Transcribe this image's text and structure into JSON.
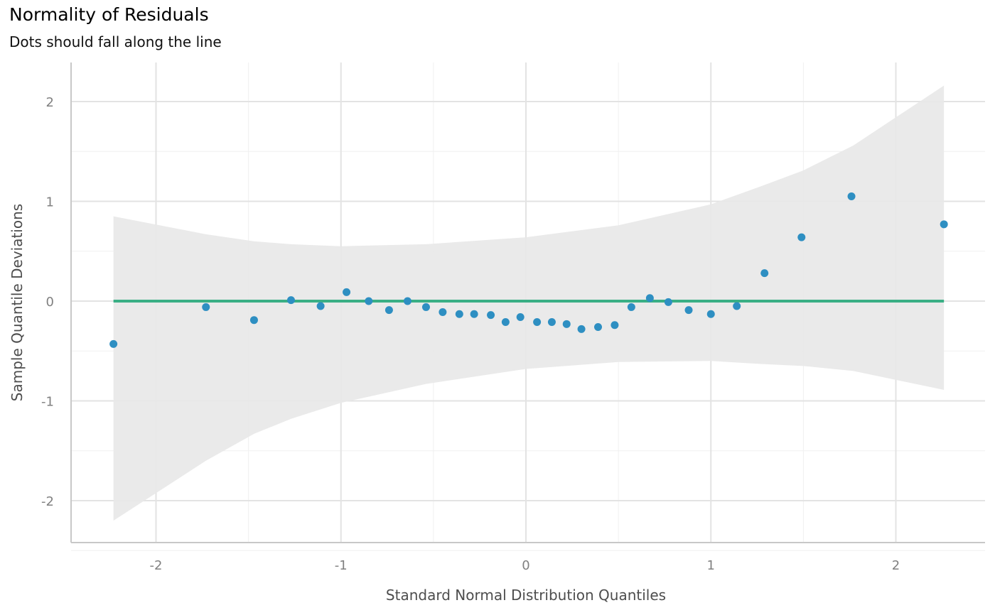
{
  "chart_data": {
    "type": "scatter",
    "title": "Normality of Residuals",
    "subtitle": "Dots should fall along the line",
    "xlabel": "Standard Normal Distribution Quantiles",
    "ylabel": "Sample Quantile Deviations",
    "xlim": [
      -2.46,
      2.48
    ],
    "ylim": [
      -2.43,
      2.38
    ],
    "xticks": [
      -2,
      -1,
      0,
      1,
      2
    ],
    "yticks": [
      -2,
      -1,
      0,
      1,
      2
    ],
    "grid": true,
    "colors": {
      "points": "#2e8fc2",
      "line": "#3aaf85",
      "band": "#e8e8e8"
    },
    "reference_line": {
      "y": 0,
      "x_range": [
        -2.23,
        2.26
      ]
    },
    "points": {
      "x": [
        -2.23,
        -1.73,
        -1.47,
        -1.27,
        -1.11,
        -0.97,
        -0.85,
        -0.74,
        -0.64,
        -0.54,
        -0.45,
        -0.36,
        -0.28,
        -0.19,
        -0.11,
        -0.03,
        0.06,
        0.14,
        0.22,
        0.3,
        0.39,
        0.48,
        0.57,
        0.67,
        0.77,
        0.88,
        1.0,
        1.14,
        1.29,
        1.49,
        1.76,
        2.26
      ],
      "y": [
        -0.43,
        -0.06,
        -0.19,
        0.01,
        -0.05,
        0.09,
        0.0,
        -0.09,
        0.0,
        -0.06,
        -0.11,
        -0.13,
        -0.13,
        -0.14,
        -0.21,
        -0.16,
        -0.21,
        -0.21,
        -0.23,
        -0.28,
        -0.26,
        -0.24,
        -0.06,
        0.03,
        -0.01,
        -0.09,
        -0.13,
        -0.05,
        0.28,
        0.64,
        1.05,
        0.77
      ]
    },
    "confidence_band": {
      "x": [
        -2.23,
        -1.73,
        -1.47,
        -1.27,
        -1.0,
        -0.54,
        0.0,
        0.5,
        1.0,
        1.27,
        1.5,
        1.77,
        2.26
      ],
      "upper": [
        0.85,
        0.67,
        0.6,
        0.57,
        0.55,
        0.57,
        0.64,
        0.76,
        0.97,
        1.15,
        1.31,
        1.56,
        2.16
      ],
      "lower": [
        -2.2,
        -1.6,
        -1.33,
        -1.18,
        -1.02,
        -0.83,
        -0.68,
        -0.61,
        -0.6,
        -0.63,
        -0.65,
        -0.7,
        -0.89
      ]
    }
  }
}
